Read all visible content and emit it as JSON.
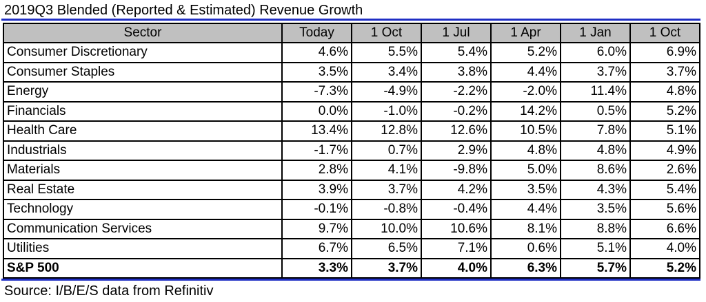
{
  "title": "2019Q3 Blended (Reported & Estimated) Revenue Growth",
  "table": {
    "headers": [
      "Sector",
      "Today",
      "1 Oct",
      "1 Jul",
      "1 Apr",
      "1 Jan",
      "1 Oct"
    ],
    "rows": [
      {
        "sector": "Consumer Discretionary",
        "values": [
          "4.6%",
          "5.5%",
          "5.4%",
          "5.2%",
          "6.0%",
          "6.9%"
        ]
      },
      {
        "sector": "Consumer Staples",
        "values": [
          "3.5%",
          "3.4%",
          "3.8%",
          "4.4%",
          "3.7%",
          "3.7%"
        ]
      },
      {
        "sector": "Energy",
        "values": [
          "-7.3%",
          "-4.9%",
          "-2.2%",
          "-2.0%",
          "11.4%",
          "4.8%"
        ]
      },
      {
        "sector": "Financials",
        "values": [
          "0.0%",
          "-1.0%",
          "-0.2%",
          "14.2%",
          "0.5%",
          "5.2%"
        ]
      },
      {
        "sector": "Health Care",
        "values": [
          "13.4%",
          "12.8%",
          "12.6%",
          "10.5%",
          "7.8%",
          "5.1%"
        ]
      },
      {
        "sector": "Industrials",
        "values": [
          "-1.7%",
          "0.7%",
          "2.9%",
          "4.8%",
          "4.8%",
          "4.9%"
        ]
      },
      {
        "sector": "Materials",
        "values": [
          "2.8%",
          "4.1%",
          "-9.8%",
          "5.0%",
          "8.6%",
          "2.6%"
        ]
      },
      {
        "sector": "Real Estate",
        "values": [
          "3.9%",
          "3.7%",
          "4.2%",
          "3.5%",
          "4.3%",
          "5.4%"
        ]
      },
      {
        "sector": "Technology",
        "values": [
          "-0.1%",
          "-0.8%",
          "-0.4%",
          "4.4%",
          "3.5%",
          "5.6%"
        ]
      },
      {
        "sector": "Communication Services",
        "values": [
          "9.7%",
          "10.0%",
          "10.6%",
          "8.1%",
          "8.8%",
          "6.6%"
        ]
      },
      {
        "sector": "Utilities",
        "values": [
          "6.7%",
          "6.5%",
          "7.1%",
          "0.6%",
          "5.1%",
          "4.0%"
        ]
      }
    ],
    "total": {
      "sector": "S&P 500",
      "values": [
        "3.3%",
        "3.7%",
        "4.0%",
        "6.3%",
        "5.7%",
        "5.2%"
      ]
    }
  },
  "source": "Source: I/B/E/S data from Refinitiv",
  "colors": {
    "rule": "#1f2ec4",
    "header_bg": "#c0c0c0"
  }
}
